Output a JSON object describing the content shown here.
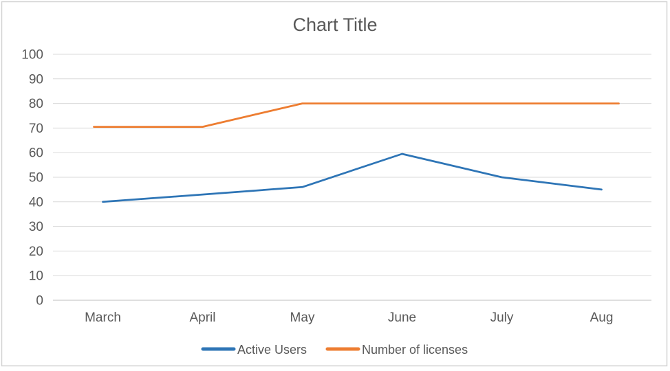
{
  "title": "Chart Title",
  "colors": {
    "title_text": "#595959",
    "axis_text": "#595959",
    "gridline": "#d9d9d9",
    "axis_line": "#bfbfbf",
    "frame_border": "#d3d3d3",
    "series_blue": "#2e75b6",
    "series_orange": "#ed7d31",
    "background": "#ffffff"
  },
  "legend": {
    "items": [
      {
        "label": "Active Users",
        "color": "#2e75b6"
      },
      {
        "label": "Number of licenses",
        "color": "#ed7d31"
      }
    ],
    "position": "bottom"
  },
  "chart_data": {
    "type": "line",
    "title": "Chart Title",
    "categories": [
      "March",
      "April",
      "May",
      "June",
      "July",
      "Aug"
    ],
    "series": [
      {
        "name": "Active Users",
        "color": "#2e75b6",
        "values": [
          40,
          43,
          46,
          59.5,
          50,
          45
        ]
      },
      {
        "name": "Number of licenses",
        "color": "#ed7d31",
        "values": [
          70.5,
          70.5,
          80,
          80,
          80,
          80
        ]
      }
    ],
    "xlabel": "",
    "ylabel": "",
    "ylim": [
      0,
      100
    ],
    "ytick_step": 10,
    "yticks": [
      0,
      10,
      20,
      30,
      40,
      50,
      60,
      70,
      80,
      90,
      100
    ],
    "grid": true,
    "legend_position": "bottom"
  }
}
